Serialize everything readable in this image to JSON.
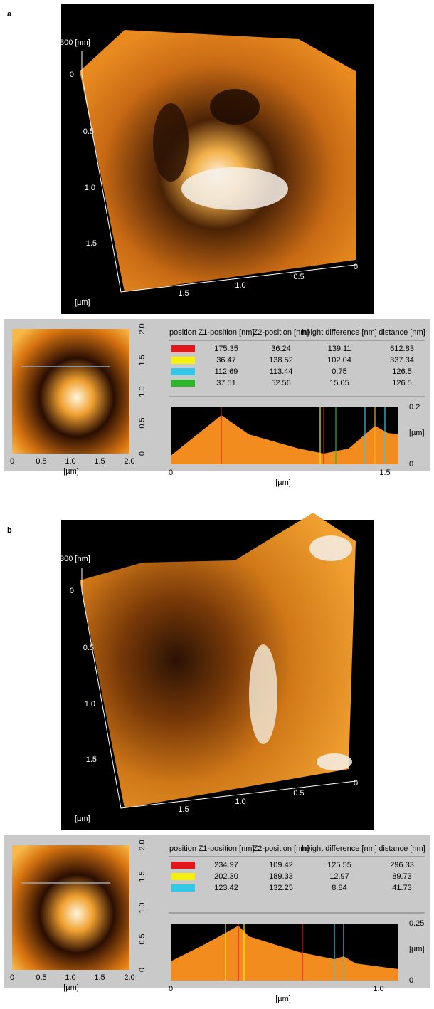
{
  "panels": [
    {
      "label": "a",
      "surface": {
        "z_label": "300 [nm]",
        "z_zero": "0",
        "y_ticks": [
          "0.5",
          "1.0",
          "1.5"
        ],
        "x_ticks": [
          "1.5",
          "1.0",
          "0.5",
          "0"
        ],
        "unit": "[µm]"
      },
      "map": {
        "y_ticks": [
          "0",
          "0.5",
          "1.0",
          "1.5",
          "2.0"
        ],
        "x_ticks": [
          "0",
          "0.5",
          "1.0",
          "1.5",
          "2.0"
        ],
        "unit": "[µm]"
      },
      "table": {
        "headers": [
          "position",
          "Z1-position [nm]",
          "Z2-position [nm]",
          "height difference [nm]",
          "distance [nm]"
        ],
        "rows": [
          {
            "color": "#e3161c",
            "cells": [
              "175.35",
              "36.24",
              "139.11",
              "612.83"
            ]
          },
          {
            "color": "#f5f00f",
            "cells": [
              "36.47",
              "138.52",
              "102.04",
              "337.34"
            ]
          },
          {
            "color": "#34c8e8",
            "cells": [
              "112.69",
              "113.44",
              "0.75",
              "126.5"
            ]
          },
          {
            "color": "#2fb52a",
            "cells": [
              "37.51",
              "52.56",
              "15.05",
              "126.5"
            ]
          }
        ]
      },
      "profile": {
        "y_ticks": [
          "0.2",
          "0"
        ],
        "y_unit": "[µm]",
        "x_ticks": [
          "0",
          "1.5"
        ],
        "x_unit": "[µm]"
      }
    },
    {
      "label": "b",
      "surface": {
        "z_label": "300 [nm]",
        "z_zero": "0",
        "y_ticks": [
          "0.5",
          "1.0",
          "1.5"
        ],
        "x_ticks": [
          "1.5",
          "1.0",
          "0.5",
          "0"
        ],
        "unit": "[µm]"
      },
      "map": {
        "y_ticks": [
          "0",
          "0.5",
          "1.0",
          "1.5",
          "2.0"
        ],
        "x_ticks": [
          "0",
          "0.5",
          "1.0",
          "1.5",
          "2.0"
        ],
        "unit": "[µm]"
      },
      "table": {
        "headers": [
          "position",
          "Z1-position [nm]",
          "Z2-position [nm]",
          "height difference [nm]",
          "distance [nm]"
        ],
        "rows": [
          {
            "color": "#e3161c",
            "cells": [
              "234.97",
              "109.42",
              "125.55",
              "296.33"
            ]
          },
          {
            "color": "#f5f00f",
            "cells": [
              "202.30",
              "189.33",
              "12.97",
              "89.73"
            ]
          },
          {
            "color": "#34c8e8",
            "cells": [
              "123.42",
              "132.25",
              "8.84",
              "41.73"
            ]
          }
        ]
      },
      "profile": {
        "y_ticks": [
          "0.25",
          "0"
        ],
        "y_unit": "[µm]",
        "x_ticks": [
          "0",
          "1.0"
        ],
        "x_unit": "[µm]"
      }
    }
  ]
}
